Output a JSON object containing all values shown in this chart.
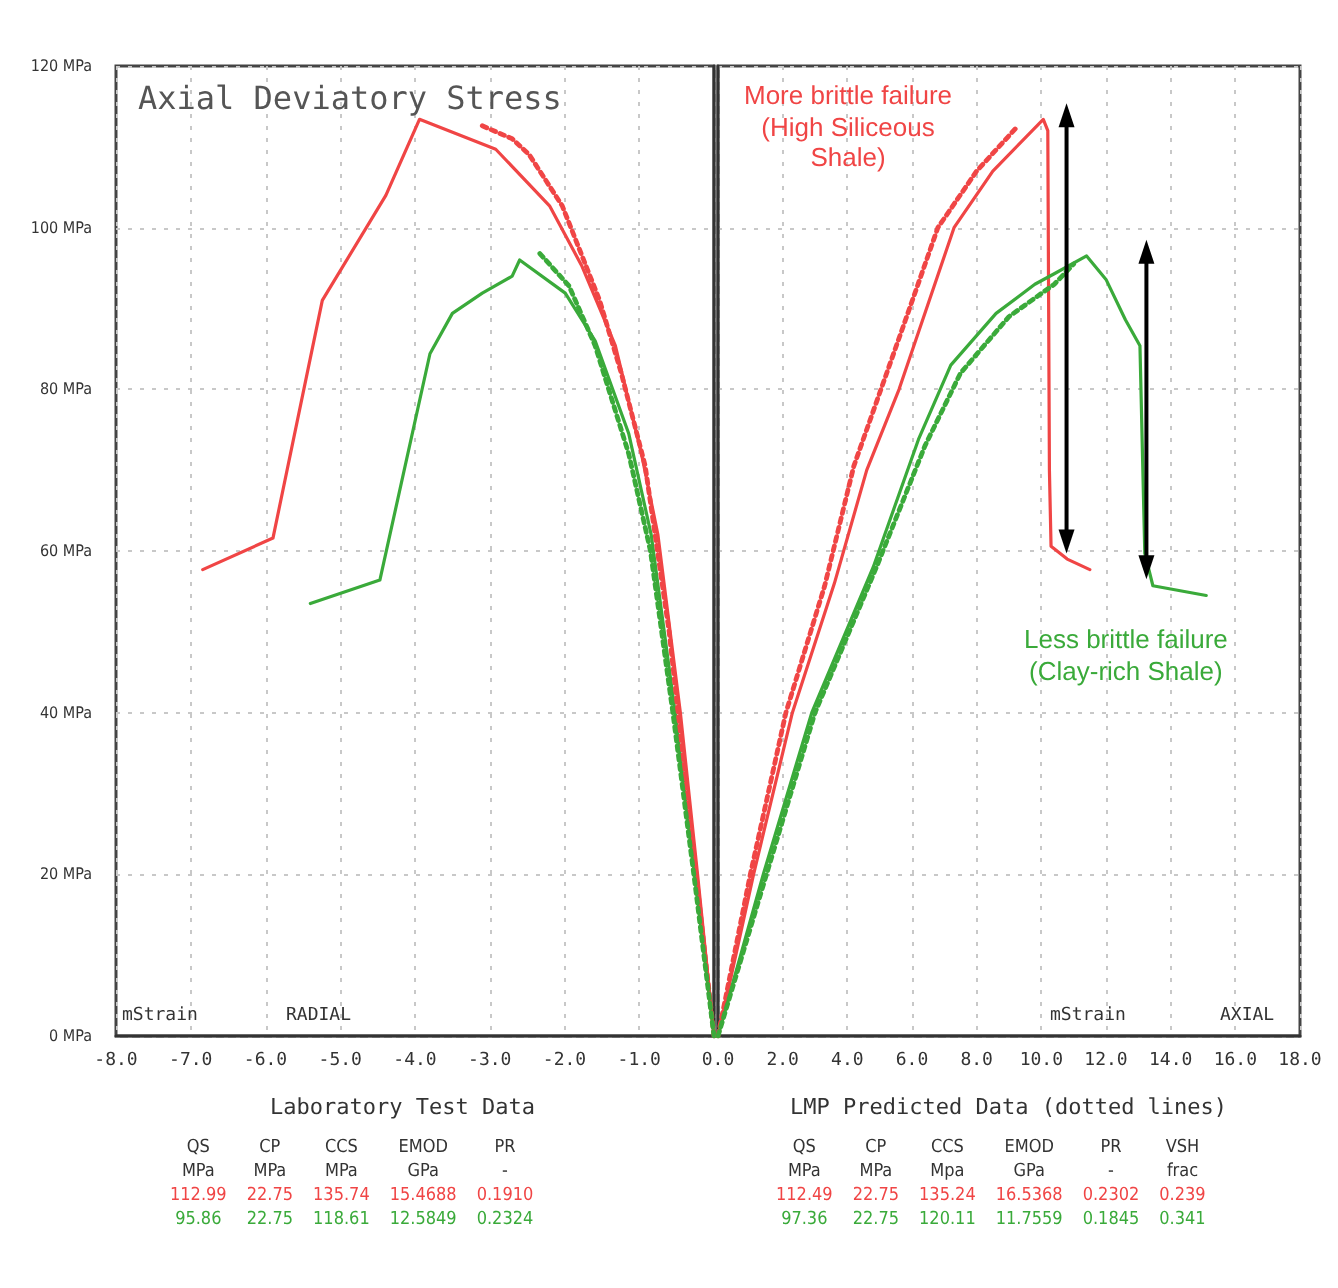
{
  "chart_data": [
    {
      "type": "line",
      "title": "Axial Deviatory Stress",
      "xlim": [
        -8,
        0
      ],
      "xticks": [
        {
          "value": -8,
          "label": "-8.0"
        },
        {
          "value": -7,
          "label": "-7.0"
        },
        {
          "value": -6,
          "label": "-6.0"
        },
        {
          "value": -5,
          "label": "-5.0"
        },
        {
          "value": -4,
          "label": "-4.0"
        },
        {
          "value": -3,
          "label": "-3.0"
        },
        {
          "value": -2,
          "label": "-2.0"
        },
        {
          "value": -1,
          "label": "-1.0"
        },
        {
          "value": 0,
          "label": null
        }
      ],
      "ylim": [
        0,
        120
      ],
      "yticks": [
        {
          "value": 0,
          "label": "0 MPa"
        },
        {
          "value": 20,
          "label": "20 MPa"
        },
        {
          "value": 40,
          "label": "40 MPa"
        },
        {
          "value": 60,
          "label": "60 MPa"
        },
        {
          "value": 80,
          "label": "80 MPa"
        },
        {
          "value": 100,
          "label": "100 MPa"
        },
        {
          "value": 120,
          "label": "120 MPa"
        }
      ],
      "grid": true,
      "marker": "none",
      "series": [
        {
          "color": "#f04545",
          "line_style": "solid",
          "x": [
            -6.84,
            -5.9,
            -5.24,
            -4.39,
            -3.94,
            -2.92,
            -2.2,
            -1.77,
            -1.32,
            -0.97,
            -0.75,
            -0.45,
            -0.22,
            0
          ],
          "values": [
            57.7,
            61.6,
            91,
            104,
            113.4,
            109.7,
            102.7,
            95.3,
            85.4,
            72,
            62,
            40,
            20,
            0
          ]
        },
        {
          "color": "#3aaa3a",
          "line_style": "solid",
          "x": [
            -5.4,
            -4.47,
            -3.8,
            -3.5,
            -3.1,
            -2.7,
            -2.6,
            -1.99,
            -1.59,
            -1.14,
            -0.84,
            -0.52,
            -0.26,
            0
          ],
          "values": [
            53.5,
            56.4,
            84.4,
            89.4,
            91.9,
            94,
            96,
            91.9,
            86,
            74.5,
            62,
            40,
            20,
            0
          ]
        },
        {
          "color": "#f04545",
          "line_style": "dotted",
          "x": [
            -3.1,
            -2.7,
            -2.47,
            -2.03,
            -1.53,
            -1.24,
            -0.92,
            -0.6,
            -0.3,
            0
          ],
          "values": [
            112.6,
            111,
            109,
            102.7,
            91,
            82,
            70.5,
            50,
            25,
            0
          ]
        },
        {
          "color": "#3aaa3a",
          "line_style": "dotted",
          "x": [
            -2.33,
            -1.94,
            -1.59,
            -1.14,
            -0.85,
            -0.55,
            -0.27,
            0
          ],
          "values": [
            96.8,
            92.8,
            85.4,
            72,
            60,
            40,
            20,
            0
          ]
        }
      ],
      "annotations": [
        "mStrain",
        "RADIAL",
        "Laboratory Test Data",
        "QS\tCP\tCCS\tEMOD\tPR",
        "MPa\tMPa\tMPa\tGPa\t-",
        "112.99\t22.75\t135.74\t15.4688\t0.1910",
        "95.86\t22.75\t118.61\t12.5849\t0.2324"
      ]
    },
    {
      "type": "line",
      "xlim": [
        0,
        18
      ],
      "xticks": [
        {
          "value": 0,
          "label": "0.0"
        },
        {
          "value": 2,
          "label": "2.0"
        },
        {
          "value": 4,
          "label": "4.0"
        },
        {
          "value": 6,
          "label": "6.0"
        },
        {
          "value": 8,
          "label": "8.0"
        },
        {
          "value": 10,
          "label": "10.0"
        },
        {
          "value": 12,
          "label": "12.0"
        },
        {
          "value": 14,
          "label": "14.0"
        },
        {
          "value": 16,
          "label": "16.0"
        },
        {
          "value": 18,
          "label": "18.0"
        }
      ],
      "ylim": [
        0,
        120
      ],
      "yticks": [
        0,
        20,
        40,
        60,
        80,
        100,
        120
      ],
      "tick_labels": "x",
      "grid": true,
      "marker": "none",
      "series": [
        {
          "color": "#f04545",
          "line_style": "solid",
          "x": [
            0,
            1.1,
            2.3,
            3.6,
            4.6,
            5.6,
            7.3,
            8.5,
            10.06,
            10.2,
            10.25,
            10.3,
            10.8,
            11.5
          ],
          "values": [
            0,
            20,
            40,
            56,
            70,
            80,
            100,
            107,
            113.4,
            112,
            70,
            60.6,
            59,
            57.7
          ]
        },
        {
          "color": "#3aaa3a",
          "line_style": "solid",
          "x": [
            0,
            1.4,
            2.9,
            4.8,
            6.2,
            7.2,
            8.6,
            9.8,
            10.4,
            11.4,
            12.0,
            12.6,
            13.05,
            13.2,
            13.45,
            15.1
          ],
          "values": [
            0,
            20,
            40,
            58,
            73.8,
            83,
            89.4,
            93,
            94.3,
            96.5,
            93.6,
            88.6,
            85.4,
            59.7,
            55.7,
            54.5
          ]
        },
        {
          "color": "#f04545",
          "line_style": "dotted",
          "x": [
            0,
            1.0,
            2.1,
            3.3,
            4.2,
            5.8,
            6.8,
            8.0,
            9.28
          ],
          "values": [
            0,
            20,
            40,
            55.7,
            70.5,
            88.6,
            100,
            107,
            112.6
          ]
        },
        {
          "color": "#3aaa3a",
          "line_style": "dotted",
          "x": [
            0,
            1.5,
            3.0,
            4.9,
            6.4,
            7.5,
            9.0,
            10.4,
            11.0
          ],
          "values": [
            0,
            20,
            40,
            58,
            73,
            82,
            89,
            93,
            95.5
          ]
        }
      ],
      "annotations": [
        "More brittle failure\n(High Siliceous\nShale)",
        "Less brittle failure\n(Clay-rich Shale)",
        "mStrain",
        "AXIAL",
        "LMP Predicted Data (dotted lines)",
        "QS\tCP\tCCS\tEMOD\tPR\tVSH",
        "MPa\tMPa\tMpa\tGPa\t-\tfrac",
        "112.49\t22.75\t135.24\t16.5368\t0.2302\t0.239",
        "97.36\t22.75\t120.11\t11.7559\t0.1845\t0.341"
      ]
    }
  ]
}
